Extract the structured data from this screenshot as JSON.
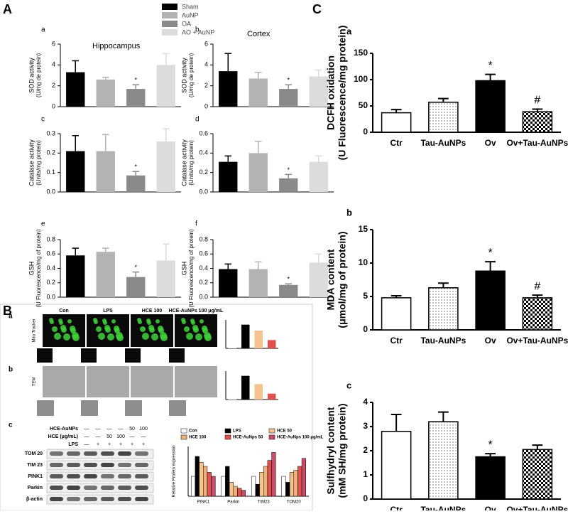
{
  "panels": [
    "A",
    "B",
    "C"
  ],
  "legend_a": [
    {
      "name": "Sham",
      "color": "#000000"
    },
    {
      "name": "AuNP",
      "color": "#b3b3b3"
    },
    {
      "name": "OA",
      "color": "#8a8a8a"
    },
    {
      "name": "AO + AuNP",
      "color": "#dcdcdc"
    }
  ],
  "panel_b": {
    "row_labels": [
      "a",
      "b",
      "c"
    ],
    "columns": [
      "Con",
      "LPS",
      "HCE 100",
      "HCE-AuNPs 100 μg/mL"
    ],
    "image_rows": [
      "Mito Tracker",
      "TEM"
    ],
    "blot_treatments": [
      {
        "name": "HCE-AuNPs",
        "marks": [
          "—",
          "—",
          "—",
          "—",
          "50",
          "100"
        ]
      },
      {
        "name": "HCE (μg/mL)",
        "marks": [
          "—",
          "—",
          "50",
          "100",
          "—",
          "—"
        ]
      },
      {
        "name": "LPS",
        "marks": [
          "—",
          "+",
          "+",
          "+",
          "+",
          "+"
        ]
      }
    ],
    "blot_proteins": [
      "TOM 20",
      "TIM 23",
      "PINK1",
      "Parkin",
      "β-actin"
    ]
  },
  "chart_data": [
    {
      "type": "bar",
      "label": "a",
      "subtitle": "Hippocampus",
      "ylabel": "SOD activity",
      "ylabel_units": "(U/mg de protein)",
      "categories": [
        null,
        null,
        null,
        null
      ],
      "values": [
        3.3,
        2.6,
        1.7,
        4.0
      ],
      "errors": [
        1.1,
        0.2,
        0.4,
        1.1
      ],
      "colors": [
        "#000000",
        "#b3b3b3",
        "#8a8a8a",
        "#dcdcdc"
      ],
      "ylim": [
        0,
        6
      ],
      "yticks": [
        0,
        2,
        4,
        6
      ],
      "annotations": [
        {
          "category": 2,
          "text": "*"
        }
      ]
    },
    {
      "type": "bar",
      "label": "b",
      "subtitle": "Cortex",
      "ylabel": "SOD activity",
      "ylabel_units": "(U/mg de protein)",
      "categories": [
        null,
        null,
        null,
        null
      ],
      "values": [
        3.4,
        2.7,
        1.7,
        2.9
      ],
      "errors": [
        1.7,
        0.6,
        0.4,
        0.6
      ],
      "colors": [
        "#000000",
        "#b3b3b3",
        "#8a8a8a",
        "#dcdcdc"
      ],
      "ylim": [
        0,
        6
      ],
      "yticks": [
        0,
        2,
        4,
        6
      ],
      "annotations": [
        {
          "category": 2,
          "text": "*"
        }
      ]
    },
    {
      "type": "bar",
      "label": "c",
      "ylabel": "Catalase activity",
      "ylabel_units": "(Units/mg protein)",
      "categories": [
        null,
        null,
        null,
        null
      ],
      "values": [
        0.21,
        0.21,
        0.085,
        0.26
      ],
      "errors": [
        0.08,
        0.085,
        0.02,
        0.065
      ],
      "colors": [
        "#000000",
        "#b3b3b3",
        "#8a8a8a",
        "#dcdcdc"
      ],
      "ylim": [
        0,
        0.3
      ],
      "yticks": [
        {
          "value": 0,
          "label": "0.0"
        },
        0.1,
        0.2,
        0.3
      ],
      "annotations": [
        {
          "category": 2,
          "text": "*"
        }
      ]
    },
    {
      "type": "bar",
      "label": "d",
      "ylabel": "Catalase activity",
      "ylabel_units": "(Units/mg protein)",
      "categories": [
        null,
        null,
        null,
        null
      ],
      "values": [
        0.31,
        0.4,
        0.14,
        0.31
      ],
      "errors": [
        0.06,
        0.12,
        0.04,
        0.06
      ],
      "colors": [
        "#000000",
        "#b3b3b3",
        "#8a8a8a",
        "#dcdcdc"
      ],
      "ylim": [
        0,
        0.6
      ],
      "yticks": [
        {
          "value": 0,
          "label": "0.0"
        },
        0.2,
        0.4,
        0.6
      ],
      "annotations": [
        {
          "category": 2,
          "text": "*"
        }
      ]
    },
    {
      "type": "bar",
      "label": "e",
      "ylabel": "GSH",
      "ylabel_units": "(U Fluorescence/mg of protein)",
      "categories": [
        null,
        null,
        null,
        null
      ],
      "values": [
        0.58,
        0.63,
        0.28,
        0.51
      ],
      "errors": [
        0.1,
        0.05,
        0.07,
        0.23
      ],
      "colors": [
        "#000000",
        "#b3b3b3",
        "#8a8a8a",
        "#dcdcdc"
      ],
      "ylim": [
        0,
        0.8
      ],
      "yticks": [
        {
          "value": 0,
          "label": "0.0"
        },
        0.2,
        0.4,
        0.6,
        0.8
      ],
      "annotations": [
        {
          "category": 2,
          "text": "*"
        }
      ]
    },
    {
      "type": "bar",
      "label": "f",
      "ylabel": "GSH",
      "ylabel_units": "(U Fluorescence/mg of protein)",
      "categories": [
        null,
        null,
        null,
        null
      ],
      "values": [
        0.39,
        0.39,
        0.17,
        0.48
      ],
      "errors": [
        0.07,
        0.1,
        0.015,
        0.12
      ],
      "colors": [
        "#000000",
        "#b3b3b3",
        "#8a8a8a",
        "#dcdcdc"
      ],
      "ylim": [
        0,
        0.8
      ],
      "yticks": [
        {
          "value": 0,
          "label": "0.0"
        },
        0.2,
        0.4,
        0.6,
        0.8
      ],
      "annotations": [
        {
          "category": 2,
          "text": "*"
        }
      ]
    },
    {
      "type": "bar",
      "label": "a",
      "ylabel": "DCFH oxidation",
      "ylabel_units": "(U Fluorescence/mg protein)",
      "categories": [
        "Ctr",
        "Tau-AuNPs",
        "Ov",
        "Ov+Tau-AuNPs"
      ],
      "values": [
        37,
        57,
        98,
        39
      ],
      "errors": [
        6,
        7,
        12,
        5
      ],
      "fills": [
        "white",
        "dotted",
        "black",
        "checker"
      ],
      "ylim": [
        0,
        150
      ],
      "yticks": [
        0,
        50,
        100,
        150
      ],
      "annotations": [
        {
          "category": 2,
          "text": "*"
        },
        {
          "category": 3,
          "text": "#"
        }
      ]
    },
    {
      "type": "bar",
      "label": "b",
      "ylabel": "MDA content",
      "ylabel_units": "(μmol/mg of protein)",
      "categories": [
        "Ctr",
        "Tau-AuNPs",
        "Ov",
        "Ov+Tau-AuNPs"
      ],
      "values": [
        4.8,
        6.3,
        8.8,
        4.8
      ],
      "errors": [
        0.3,
        0.7,
        1.4,
        0.4
      ],
      "fills": [
        "white",
        "dotted",
        "black",
        "checker"
      ],
      "ylim": [
        0,
        15
      ],
      "yticks": [
        0,
        5,
        10,
        15
      ],
      "annotations": [
        {
          "category": 2,
          "text": "*"
        },
        {
          "category": 3,
          "text": "#"
        }
      ]
    },
    {
      "type": "bar",
      "label": "c",
      "ylabel": "Sulfhydryl content",
      "ylabel_units": "(mM SH/mg protein)",
      "categories": [
        "Ctr",
        "Tau-AuNPs",
        "Ov",
        "Ov+Tau-AuNPs"
      ],
      "values": [
        2.8,
        3.2,
        1.75,
        2.05
      ],
      "errors": [
        0.7,
        0.4,
        0.13,
        0.18
      ],
      "fills": [
        "white",
        "dotted",
        "black",
        "checker"
      ],
      "ylim": [
        0,
        4
      ],
      "yticks": [
        0,
        1,
        2,
        3,
        4
      ],
      "annotations": [
        {
          "category": 2,
          "text": "*"
        }
      ]
    },
    {
      "type": "bar",
      "categories": [
        null,
        null,
        null,
        null
      ],
      "values": [
        0.15,
        1.0,
        0.75,
        0.35
      ],
      "colors": [
        "#ffffff",
        "#000000",
        "#f5c38e",
        "#e0504d"
      ],
      "ylim": [
        0,
        1.2
      ]
    },
    {
      "type": "bar",
      "categories": [
        null,
        null,
        null,
        null
      ],
      "values": [
        0.12,
        1.0,
        0.65,
        0.25
      ],
      "colors": [
        "#ffffff",
        "#000000",
        "#f5c38e",
        "#e0504d"
      ],
      "ylim": [
        0,
        1.2
      ]
    },
    {
      "type": "bar",
      "ylabel": "Relative Protein expression",
      "categories": [
        "PINK1",
        "Parkin",
        "TIM23",
        "TOM20"
      ],
      "ylim": [
        0,
        2.5
      ],
      "series": [
        {
          "name": "Con",
          "color": "#ffffff",
          "values": [
            1.0,
            1.0,
            1.0,
            1.0
          ]
        },
        {
          "name": "LPS",
          "color": "#000000",
          "values": [
            2.0,
            1.5,
            0.6,
            0.7
          ]
        },
        {
          "name": "HCE 50",
          "color": "#f5c38e",
          "values": [
            1.7,
            0.7,
            1.2,
            1.2
          ]
        },
        {
          "name": "HCE 100",
          "color": "#eeb07a",
          "values": [
            1.5,
            0.5,
            1.5,
            1.3
          ]
        },
        {
          "name": "HCE-AuNps 50",
          "color": "#e0504d",
          "values": [
            1.2,
            0.4,
            1.8,
            1.5
          ]
        },
        {
          "name": "HCE-AuNps 100 μg/mL",
          "color": "#c94d6a",
          "values": [
            1.0,
            0.3,
            2.2,
            1.9
          ]
        }
      ]
    }
  ]
}
